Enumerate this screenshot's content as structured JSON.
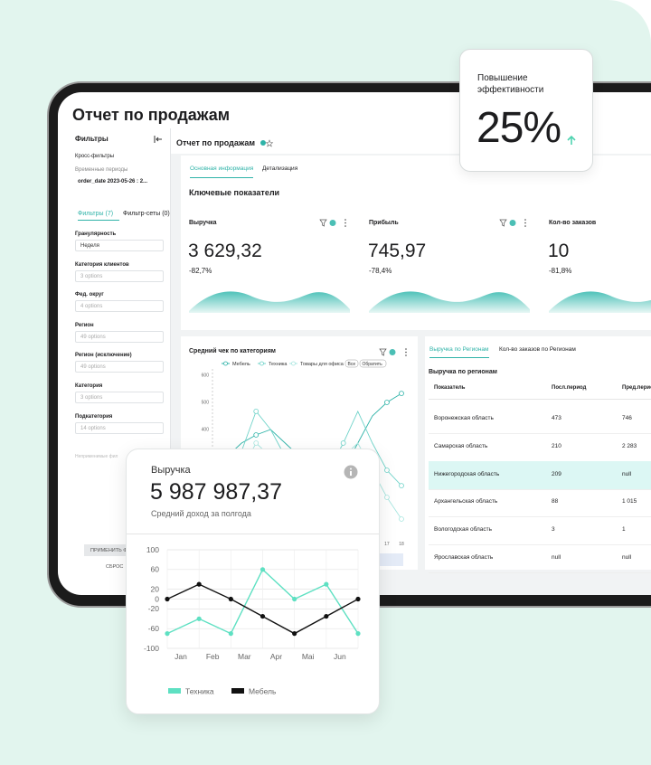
{
  "header": {
    "title": "Отчет по продажам"
  },
  "sidebar": {
    "title": "Фильтры",
    "cross_filters": "Кросс-фильтры",
    "time_periods": "Временные периоды",
    "date_filter": "order_date 2023-05-26 : 2...",
    "tabs": [
      "Фильтры (7)",
      "Фильтр-сеты (0)"
    ],
    "filters": [
      {
        "label": "Гранулярность",
        "value": "Неделя"
      },
      {
        "label": "Категория клиентов",
        "value": "3 options"
      },
      {
        "label": "Фед. округ",
        "value": "4 options"
      },
      {
        "label": "Регион",
        "value": "49 options"
      },
      {
        "label": "Регион (исключение)",
        "value": "49 options"
      },
      {
        "label": "Категория",
        "value": "3 options"
      },
      {
        "label": "Подкатегория",
        "value": "14 options"
      }
    ],
    "inapplicable": "Неприменимые фил",
    "apply": "ПРИМЕНИТЬ Ф",
    "reset": "СБРОС"
  },
  "dashboard": {
    "title": "Отчет по продажам",
    "tabs": [
      "Основная информация",
      "Детализация"
    ],
    "section_title": "Ключевые показатели",
    "kpis": [
      {
        "label": "Выручка",
        "value": "3 629,32",
        "change": "-82,7%"
      },
      {
        "label": "Прибыль",
        "value": "745,97",
        "change": "-78,4%"
      },
      {
        "label": "Кол-во заказов",
        "value": "10",
        "change": "-81,8%"
      }
    ],
    "table": {
      "tabs": [
        "Выручка по Регионам",
        "Кол-во заказов по Регионам"
      ],
      "title": "Выручка по регионам",
      "columns": [
        "Показатель",
        "Посл.период",
        "Пред.период"
      ],
      "rows": [
        [
          "Воронежская область",
          "473",
          "746"
        ],
        [
          "Самарская область",
          "210",
          "2 283"
        ],
        [
          "Нижегородская область",
          "209",
          "null"
        ],
        [
          "Архангельская область",
          "88",
          "1 015"
        ],
        [
          "Вологодская область",
          "3",
          "1"
        ],
        [
          "Ярославская область",
          "null",
          "null"
        ]
      ]
    }
  },
  "badge": {
    "label": "Повышение эффективности",
    "value": "25%"
  },
  "revenue_card": {
    "title": "Выручка",
    "value": "5 987 987,37",
    "subtitle": "Средний доход за полгода"
  },
  "chart_data": [
    {
      "type": "line",
      "title": "Средний чек по категориям",
      "buttons": [
        "Все",
        "Обратить"
      ],
      "categories": [
        null,
        null,
        null,
        null,
        null,
        null,
        null,
        null,
        null,
        null,
        null,
        null,
        "17",
        "18"
      ],
      "series": [
        {
          "name": "Мебель",
          "color": "#2fb3a8",
          "values": [
            250,
            300,
            350,
            380,
            400,
            350,
            300,
            250,
            200,
            250,
            350,
            450,
            500,
            533
          ]
        },
        {
          "name": "Техника",
          "color": "#6fd3c9",
          "values": [
            100,
            200,
            320,
            467,
            400,
            300,
            200,
            150,
            250,
            350,
            467,
            350,
            250,
            193
          ]
        },
        {
          "name": "Товары для офиса",
          "color": "#a8e6e0",
          "values": [
            50,
            150,
            250,
            350,
            300,
            200,
            150,
            100,
            200,
            300,
            350,
            250,
            150,
            70
          ]
        }
      ],
      "ylim": [
        0,
        650
      ],
      "yticks": [
        400,
        500,
        600
      ]
    },
    {
      "type": "line",
      "categories": [
        "Jan",
        "Feb",
        "Mar",
        "Apr",
        "Mai",
        "Jun",
        null
      ],
      "series": [
        {
          "name": "Техника",
          "color": "#5ee0c2",
          "values": [
            -70,
            -40,
            -70,
            60,
            0,
            30,
            -70
          ]
        },
        {
          "name": "Мебель",
          "color": "#111111",
          "values": [
            0,
            30,
            0,
            -35,
            -70,
            -35,
            0
          ]
        }
      ],
      "ylim": [
        -100,
        100
      ],
      "yticks": [
        100,
        60,
        20,
        0,
        -20,
        -60,
        -100
      ],
      "grid": true
    }
  ]
}
